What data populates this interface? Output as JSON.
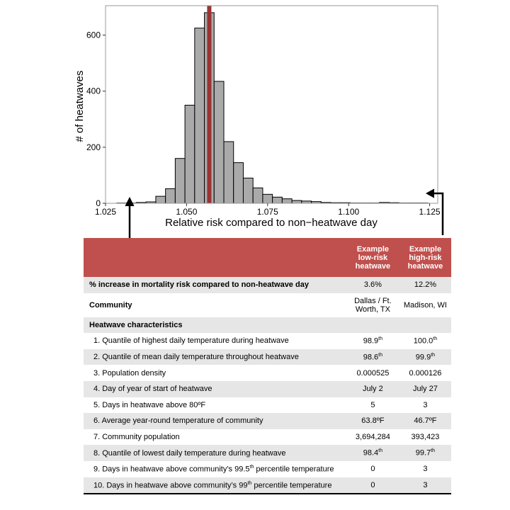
{
  "chart_data": {
    "type": "bar",
    "title": "",
    "xlabel": "Relative risk compared to non−heatwave day",
    "ylabel": "# of heatwaves",
    "xlim": [
      1.025,
      1.1275
    ],
    "ylim": [
      0,
      705
    ],
    "x_ticks": [
      1.025,
      1.05,
      1.075,
      1.1,
      1.125
    ],
    "x_tick_labels": [
      "1.025",
      "1.050",
      "1.075",
      "1.100",
      "1.125"
    ],
    "y_ticks": [
      0,
      200,
      400,
      600
    ],
    "y_tick_labels": [
      "0",
      "200",
      "400",
      "600"
    ],
    "bin_start": 1.0285,
    "bin_width": 0.003,
    "values": [
      1,
      1,
      3,
      5,
      25,
      52,
      160,
      350,
      625,
      680,
      435,
      220,
      145,
      90,
      55,
      32,
      22,
      16,
      10,
      8,
      6,
      3,
      2,
      2,
      1,
      1,
      1,
      3,
      2,
      1,
      1,
      1
    ],
    "vline": {
      "x": 1.057,
      "color": "#9b3333"
    },
    "bar_color": "#aaaaaa",
    "grid": false,
    "legend": "none"
  },
  "table": {
    "header": {
      "col_low": [
        "Example",
        "low-risk",
        "heatwave"
      ],
      "col_high": [
        "Example",
        "high-risk",
        "heatwave"
      ]
    },
    "rows": [
      {
        "label": "% increase in mortality risk compared to non-heatwave day",
        "low": "3.6%",
        "high": "12.2%",
        "style": "shade bold"
      },
      {
        "label": "Community",
        "low": "Dallas / Ft. Worth, TX",
        "high": "Madison, WI",
        "style": "bold tall"
      },
      {
        "label": "Heatwave characteristics",
        "low": "",
        "high": "",
        "style": "shade bold"
      },
      {
        "label": "1. Quantile of highest daily temperature during heatwave",
        "low": "98.9th",
        "high": "100.0th",
        "style": "sub"
      },
      {
        "label": "2.  Quantile of mean daily temperature throughout heatwave",
        "low": "98.6th",
        "high": "99.9th",
        "style": "shade sub"
      },
      {
        "label": "3. Population density",
        "low": "0.000525",
        "high": "0.000126",
        "style": "sub"
      },
      {
        "label": "4. Day of year of start of heatwave",
        "low": "July 2",
        "high": "July 27",
        "style": "shade sub"
      },
      {
        "label": "5. Days in heatwave above 80ºF",
        "low": "5",
        "high": "3",
        "style": "sub"
      },
      {
        "label": "6. Average year-round temperature of community",
        "low": "63.8ºF",
        "high": "46.7ºF",
        "style": "shade sub"
      },
      {
        "label": "7. Community population",
        "low": "3,694,284",
        "high": "393,423",
        "style": "sub"
      },
      {
        "label": "8. Quantile of lowest daily temperature during heatwave",
        "low": "98.4th",
        "high": "99.7th",
        "style": "shade sub"
      },
      {
        "label": "9. Days in heatwave above community’s 99.5th percentile temperature",
        "low": "0",
        "high": "3",
        "style": "sub"
      },
      {
        "label": "10. Days in heatwave above community’s 99th percentile temperature",
        "low": "0",
        "high": "3",
        "style": "shade sub last"
      }
    ]
  }
}
